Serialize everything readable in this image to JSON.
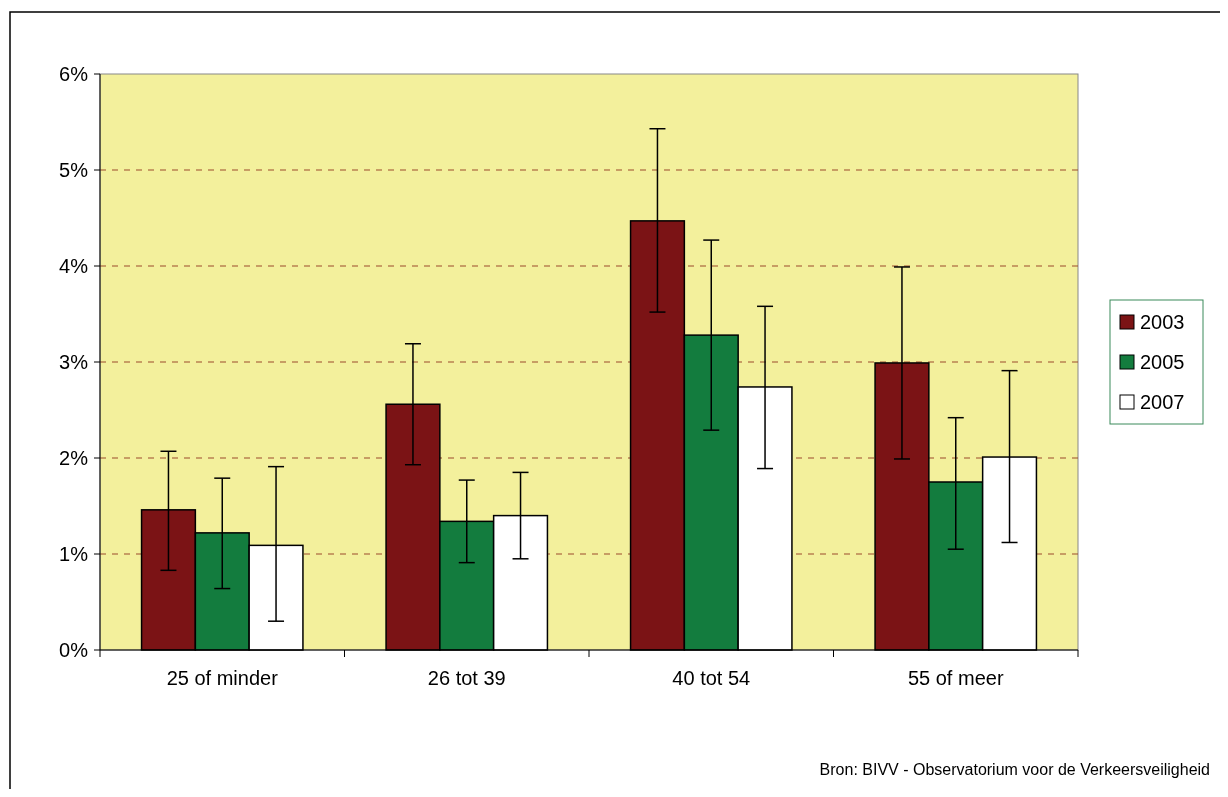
{
  "chart_data": {
    "type": "bar",
    "categories": [
      "25 of minder",
      "26 tot 39",
      "40 tot 54",
      "55 of meer"
    ],
    "series": [
      {
        "name": "2003",
        "color": "#7b1315",
        "values": [
          1.46,
          2.56,
          4.47,
          2.99
        ],
        "errors": [
          [
            0.83,
            2.07
          ],
          [
            1.93,
            3.19
          ],
          [
            3.52,
            5.43
          ],
          [
            1.99,
            3.99
          ]
        ]
      },
      {
        "name": "2005",
        "color": "#137c3e",
        "values": [
          1.22,
          1.34,
          3.28,
          1.75
        ],
        "errors": [
          [
            0.64,
            1.79
          ],
          [
            0.91,
            1.77
          ],
          [
            2.29,
            4.27
          ],
          [
            1.05,
            2.42
          ]
        ]
      },
      {
        "name": "2007",
        "color": "#ffffff",
        "values": [
          1.09,
          1.4,
          2.74,
          2.01
        ],
        "errors": [
          [
            0.3,
            1.91
          ],
          [
            0.95,
            1.85
          ],
          [
            1.89,
            3.58
          ],
          [
            1.12,
            2.91
          ]
        ]
      }
    ],
    "ylim": [
      0,
      6
    ],
    "yticks": [
      {
        "value": 0,
        "label": "0%"
      },
      {
        "value": 1,
        "label": "1%"
      },
      {
        "value": 2,
        "label": "2%"
      },
      {
        "value": 3,
        "label": "3%"
      },
      {
        "value": 4,
        "label": "4%"
      },
      {
        "value": 5,
        "label": "5%"
      },
      {
        "value": 6,
        "label": "6%"
      }
    ],
    "grid": "y",
    "legend": "right",
    "annotations": [
      "Bron: BIVV - Observatorium voor de Verkeersveiligheid"
    ]
  }
}
